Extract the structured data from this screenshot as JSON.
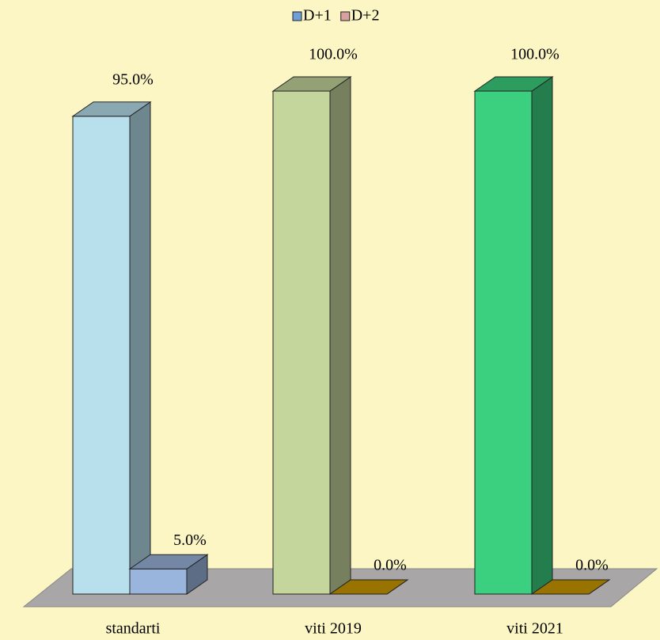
{
  "chart_data": {
    "type": "bar3d",
    "categories": [
      "standarti",
      "viti 2019",
      "viti 2021"
    ],
    "series": [
      {
        "name": "D+1",
        "color": "#6f9fd8",
        "colors": [
          "#b8e0ec",
          "#c4d69c",
          "#3ad07f"
        ],
        "values": [
          95,
          100,
          100
        ],
        "value_labels": [
          "95.0%",
          "100.0%",
          "100.0%"
        ]
      },
      {
        "name": "D+2",
        "color": "#d9a0a0",
        "colors": [
          "#9ab5dd",
          "#cc9900",
          "#cc9900"
        ],
        "values": [
          5,
          0,
          0
        ],
        "value_labels": [
          "5.0%",
          "0.0%",
          "0.0%"
        ]
      }
    ],
    "ylim": [
      0,
      100
    ]
  }
}
